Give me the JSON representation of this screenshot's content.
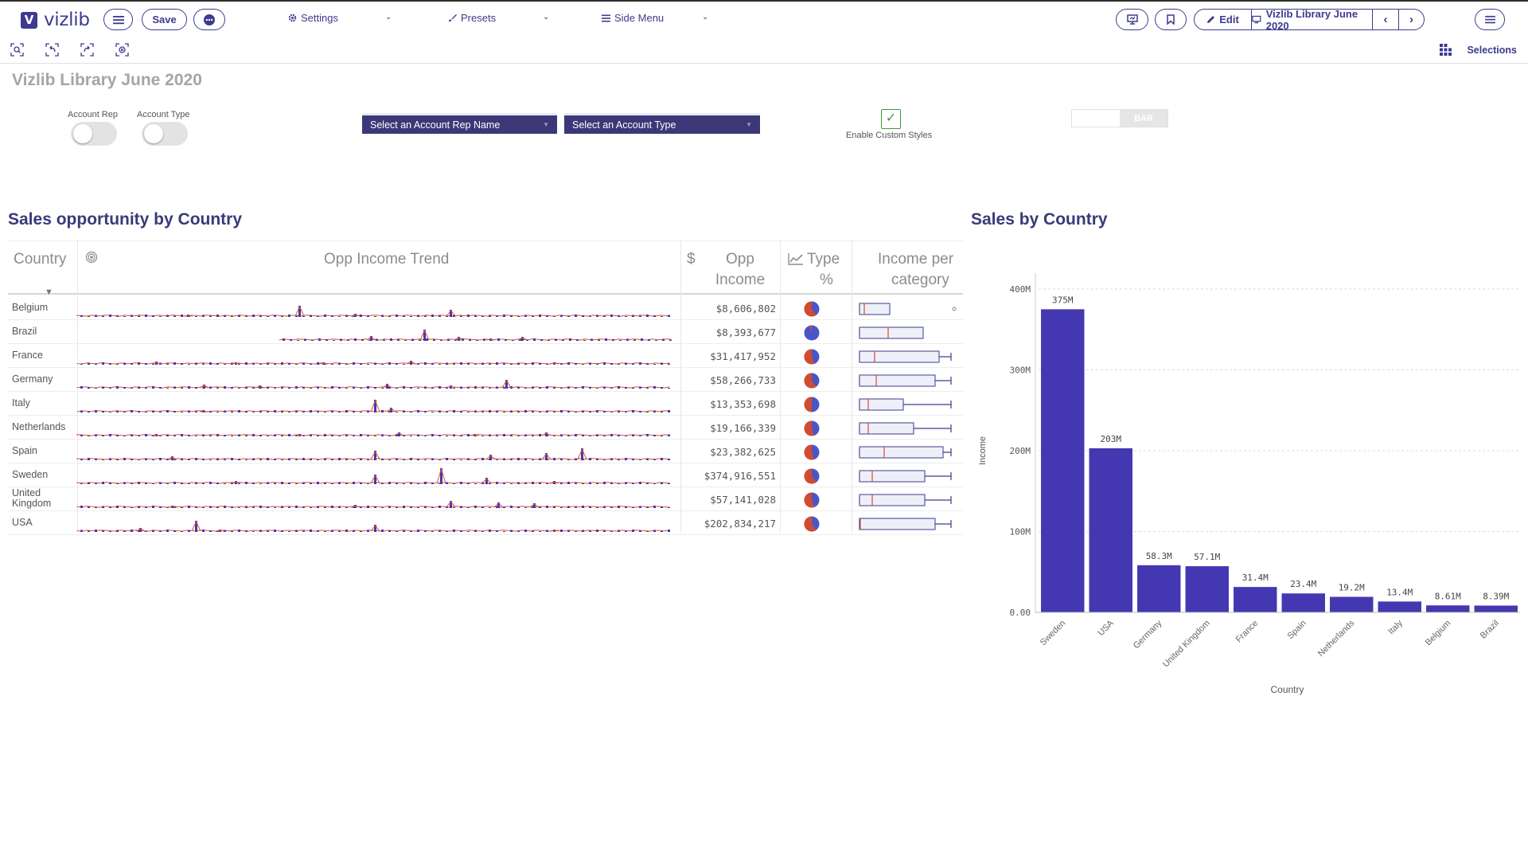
{
  "app": {
    "logo_text": "vizlib",
    "save_label": "Save",
    "menus": [
      {
        "label": "Settings",
        "icon": "gear-icon"
      },
      {
        "label": "Presets",
        "icon": "brush-icon"
      },
      {
        "label": "Side Menu",
        "icon": "list-icon"
      }
    ],
    "edit_label": "Edit",
    "sheet_name": "Vizlib Library June 2020",
    "selections_label": "Selections"
  },
  "filters": {
    "sheet_title": "Vizlib Library June 2020",
    "toggle_account_rep": "Account Rep",
    "toggle_account_type": "Account Type",
    "dropdown_rep": "Select an Account Rep Name",
    "dropdown_type": "Select an Account Type",
    "checkbox_label": "Enable Custom Styles",
    "checkbox_mark": "✓",
    "bar_switch": "BAR"
  },
  "table": {
    "title": "Sales opportunity by Country",
    "headers": {
      "country": "Country",
      "trend": "Opp Income Trend",
      "opp_income_line1": "Opp",
      "opp_income_line2": "Income",
      "opp_income_icon": "$",
      "type_line1": "Type",
      "type_line2": "%",
      "category_line1": "Income per",
      "category_line2": "category"
    },
    "rows": [
      {
        "country": "Belgium",
        "income": "$8,606,802"
      },
      {
        "country": "Brazil",
        "income": "$8,393,677"
      },
      {
        "country": "France",
        "income": "$31,417,952"
      },
      {
        "country": "Germany",
        "income": "$58,266,733"
      },
      {
        "country": "Italy",
        "income": "$13,353,698"
      },
      {
        "country": "Netherlands",
        "income": "$19,166,339"
      },
      {
        "country": "Spain",
        "income": "$23,382,625"
      },
      {
        "country": "Sweden",
        "income": "$374,916,551"
      },
      {
        "country": "United Kingdom",
        "income": "$57,141,028"
      },
      {
        "country": "USA",
        "income": "$202,834,217"
      }
    ]
  },
  "chart_data": {
    "type": "bar",
    "title": "Sales by Country",
    "xlabel": "Country",
    "ylabel": "Income",
    "categories": [
      "Sweden",
      "USA",
      "Germany",
      "United Kingdom",
      "France",
      "Spain",
      "Netherlands",
      "Italy",
      "Belgium",
      "Brazil"
    ],
    "values": [
      375,
      203,
      58.3,
      57.1,
      31.4,
      23.4,
      19.2,
      13.4,
      8.61,
      8.39
    ],
    "value_labels": [
      "375M",
      "203M",
      "58.3M",
      "57.1M",
      "31.4M",
      "23.4M",
      "19.2M",
      "13.4M",
      "8.61M",
      "8.39M"
    ],
    "yticks": [
      "0.00",
      "100M",
      "200M",
      "300M",
      "400M"
    ],
    "ylim": [
      0,
      400
    ],
    "bar_color": "#4438b2",
    "grid": true
  },
  "colors": {
    "accent": "#3d3a8f",
    "bar": "#4438b2",
    "trend_line": "#d9533a",
    "pie_red": "#d24b2f",
    "pie_blue": "#4a55c8"
  }
}
